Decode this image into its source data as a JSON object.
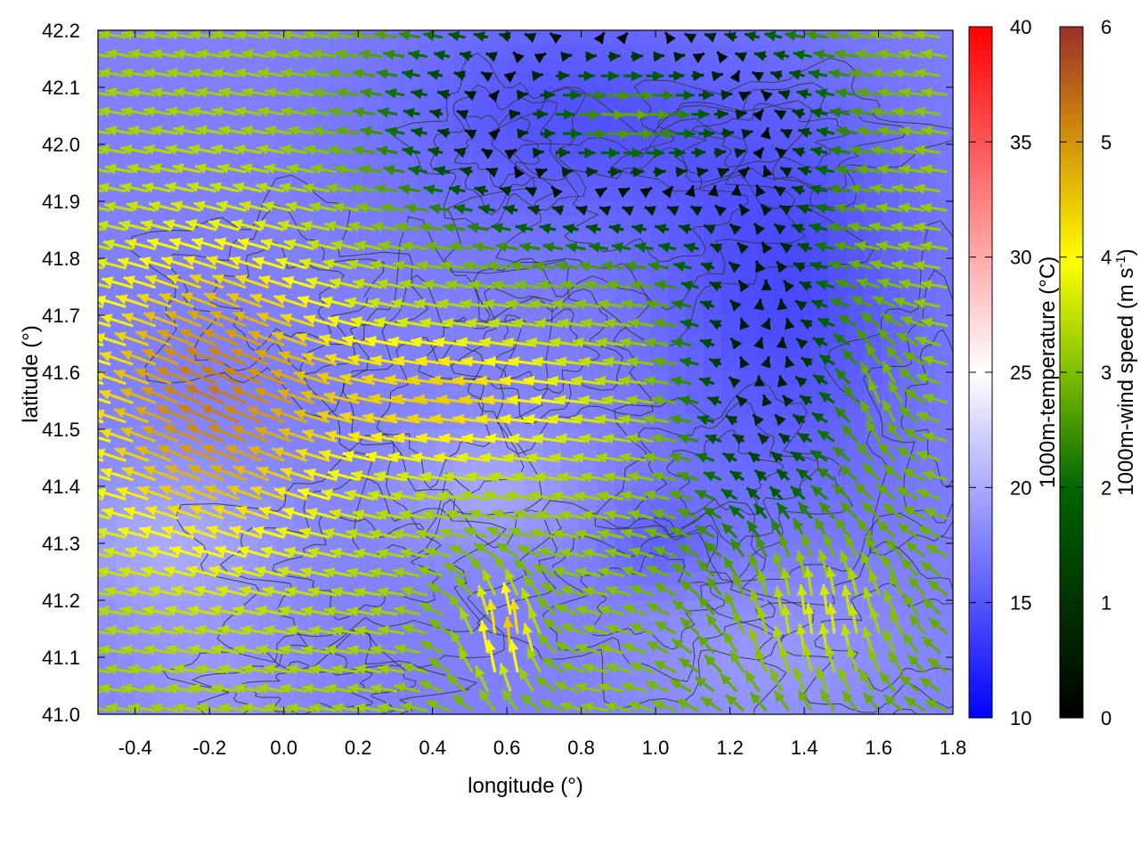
{
  "chart_data": {
    "type": "vector_field",
    "xlabel": "longitude (°)",
    "ylabel": "latitude (°)",
    "xlim": [
      -0.5,
      1.8
    ],
    "ylim": [
      41.0,
      42.2
    ],
    "xticks": [
      "-0.4",
      "-0.2",
      "0.0",
      "0.2",
      "0.4",
      "0.6",
      "0.8",
      "1.0",
      "1.2",
      "1.4",
      "1.6",
      "1.8"
    ],
    "xtick_values": [
      -0.4,
      -0.2,
      0.0,
      0.2,
      0.4,
      0.6,
      0.8,
      1.0,
      1.2,
      1.4,
      1.6,
      1.8
    ],
    "yticks": [
      "41.0",
      "41.1",
      "41.2",
      "41.3",
      "41.4",
      "41.5",
      "41.6",
      "41.7",
      "41.8",
      "41.9",
      "42.0",
      "42.1",
      "42.2"
    ],
    "ytick_values": [
      41.0,
      41.1,
      41.2,
      41.3,
      41.4,
      41.5,
      41.6,
      41.7,
      41.8,
      41.9,
      42.0,
      42.1,
      42.2
    ],
    "background_field": {
      "label": "1000m-temperature (°C)",
      "range": [
        10,
        40
      ],
      "ticks": [
        "10",
        "15",
        "20",
        "25",
        "30",
        "35",
        "40"
      ],
      "tick_values": [
        10,
        15,
        20,
        25,
        30,
        35,
        40
      ],
      "colormap": [
        "#0000ff",
        "#ffffff",
        "#ff0000"
      ]
    },
    "arrow_field": {
      "label": "1000m-wind speed (m s",
      "label_sup": "-1",
      "label_end": ")",
      "range": [
        0,
        6
      ],
      "ticks": [
        "0",
        "1",
        "2",
        "3",
        "4",
        "5",
        "6"
      ],
      "tick_values": [
        0,
        1,
        2,
        3,
        4,
        5,
        6
      ],
      "colormap": [
        "#000000",
        "#006400",
        "#7fbf00",
        "#ffff00",
        "#d4960a",
        "#9a2f2a"
      ]
    },
    "contours": "terrain elevation lines (dark gray)"
  }
}
